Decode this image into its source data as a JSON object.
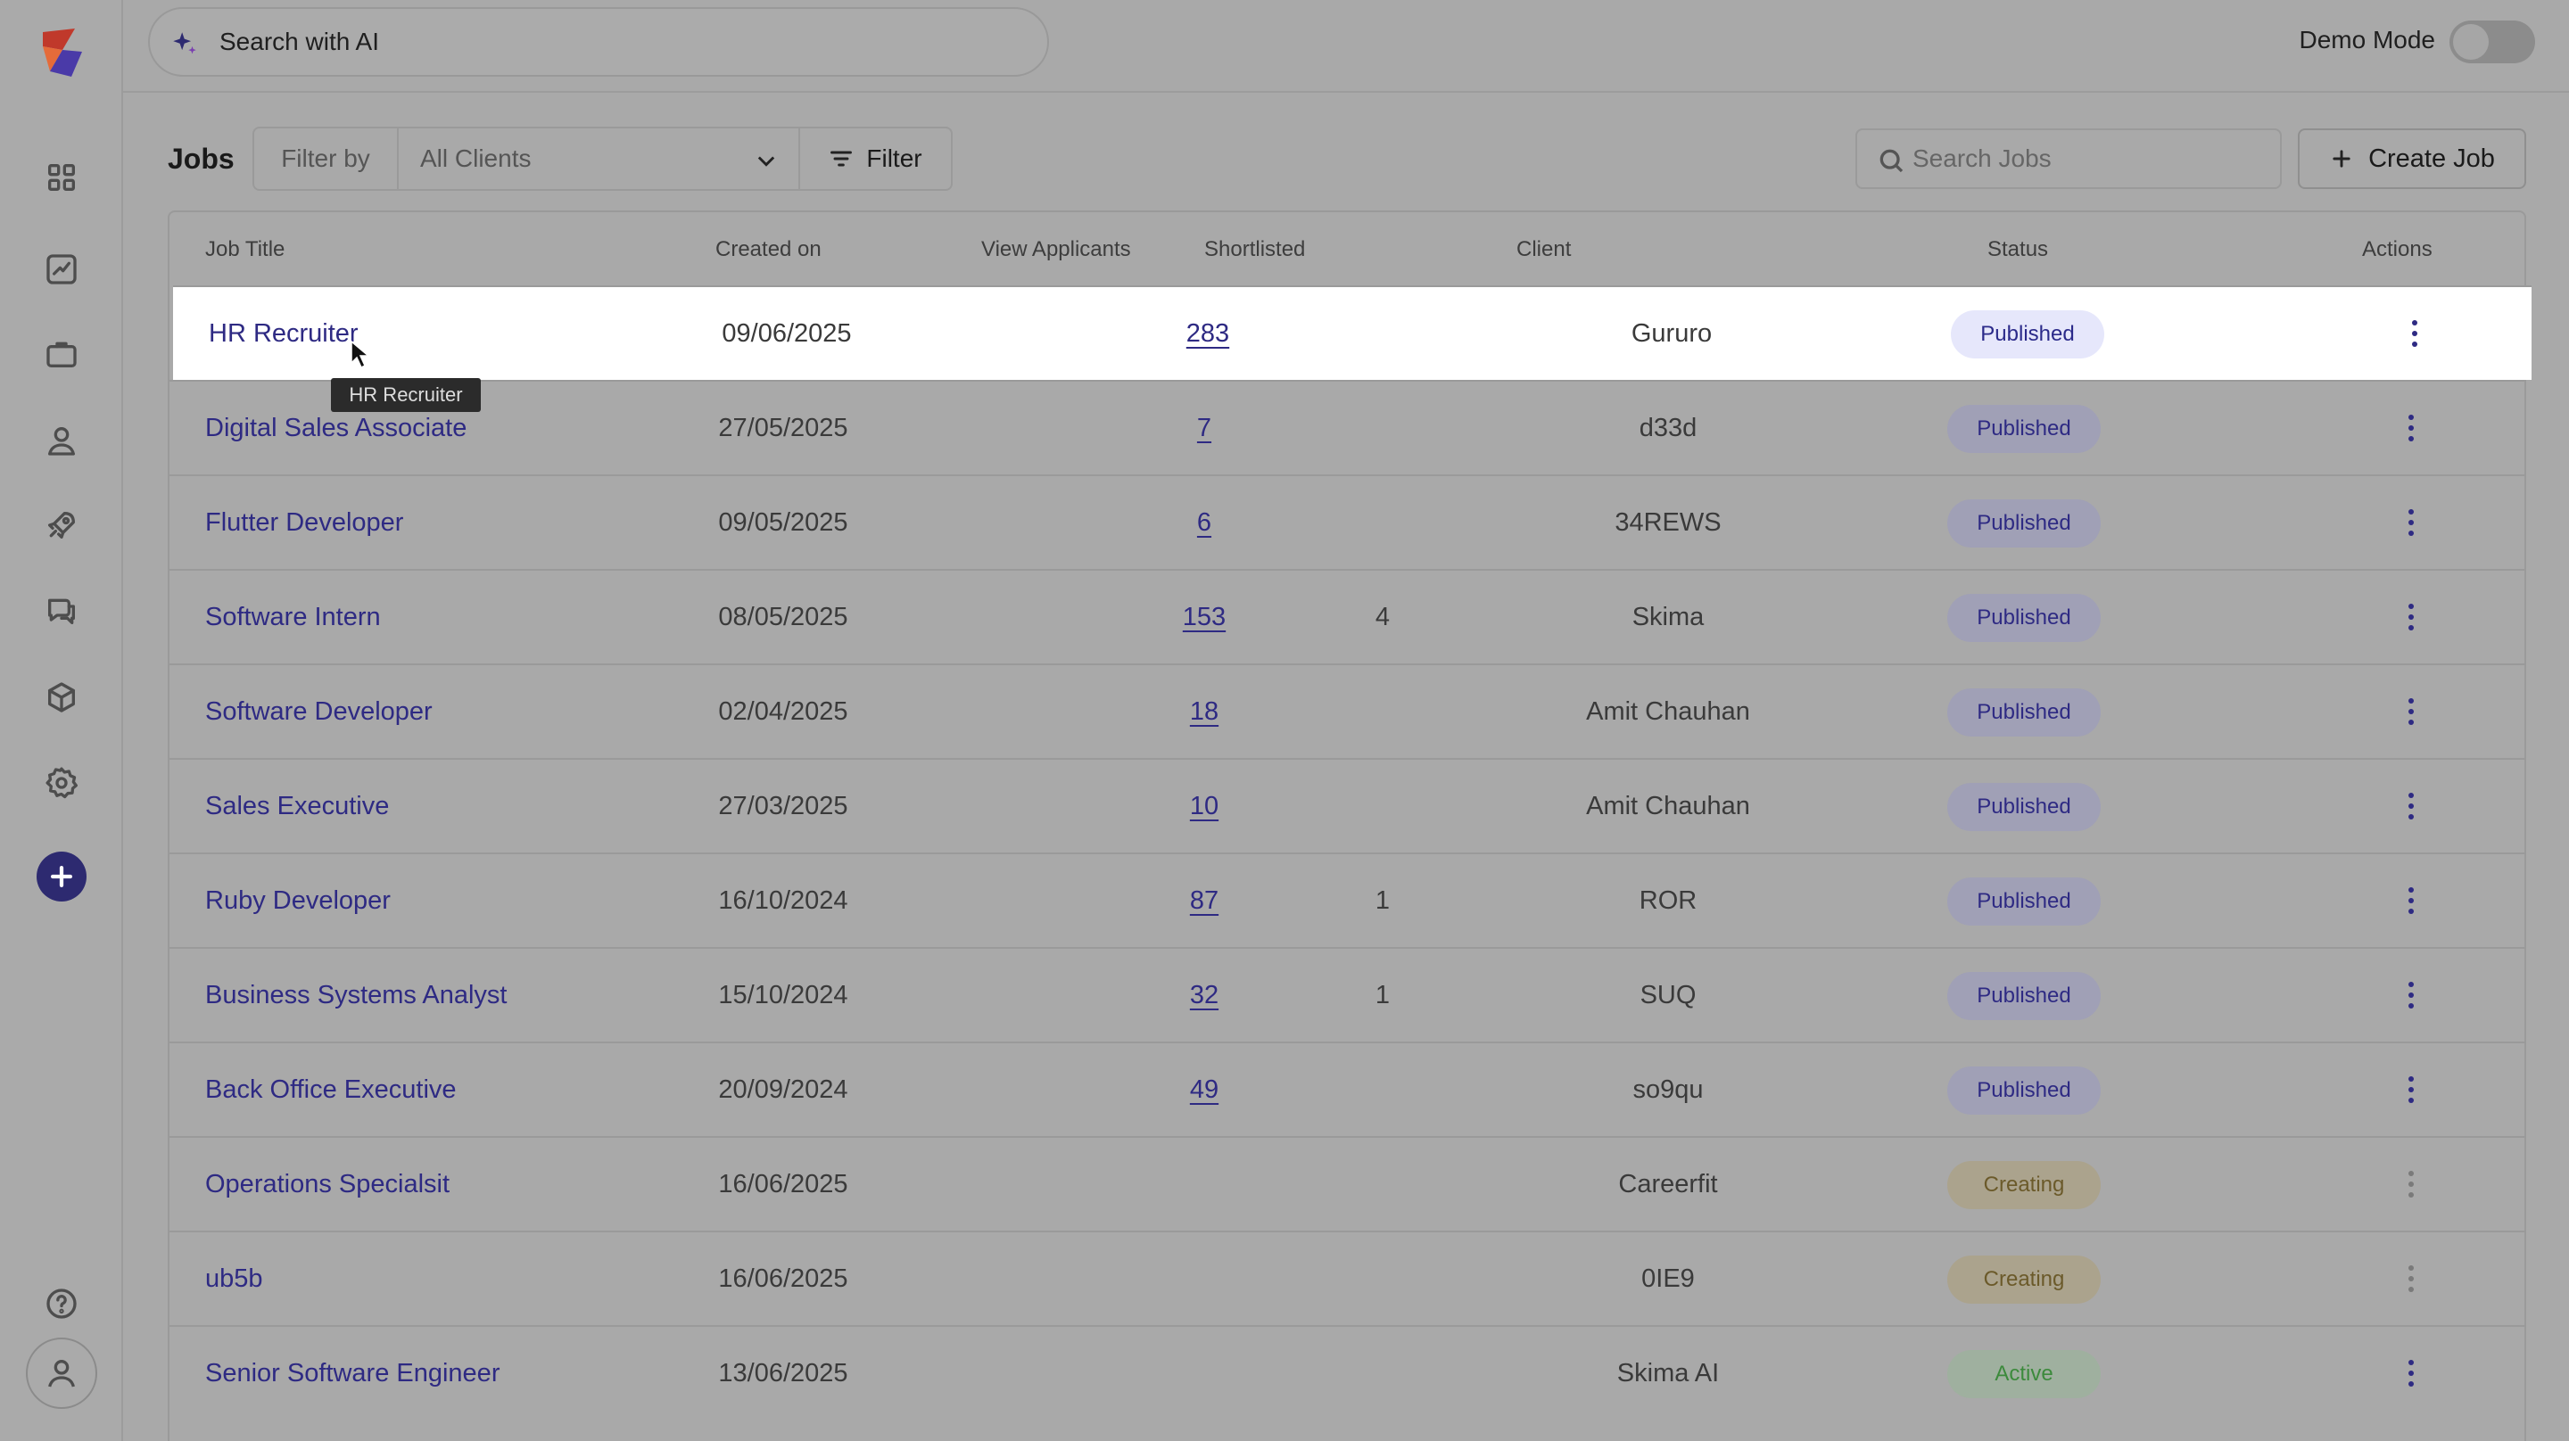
{
  "topbar": {
    "ai_search_placeholder": "Search with AI",
    "demo_mode_label": "Demo Mode",
    "demo_mode_on": false
  },
  "sidebar": {
    "items": [
      {
        "icon": "grid-icon"
      },
      {
        "icon": "chart-trend-icon"
      },
      {
        "icon": "briefcase-icon"
      },
      {
        "icon": "user-icon"
      },
      {
        "icon": "rocket-icon"
      },
      {
        "icon": "chat-icon"
      },
      {
        "icon": "cube-icon"
      },
      {
        "icon": "gear-icon"
      }
    ],
    "add_icon": "plus-icon",
    "help_icon": "help-icon",
    "avatar_icon": "user-avatar-icon"
  },
  "toolbar": {
    "title": "Jobs",
    "filter_by_label": "Filter by",
    "client_select_value": "All Clients",
    "filter_button": "Filter",
    "search_placeholder": "Search Jobs",
    "create_button": "Create Job"
  },
  "table": {
    "columns": [
      "Job Title",
      "Created on",
      "View Applicants",
      "Shortlisted",
      "Client",
      "Status",
      "Actions"
    ],
    "rows": [
      {
        "title": "HR Recruiter",
        "created": "09/06/2025",
        "applicants": "283",
        "shortlisted": "",
        "client": "Gururo",
        "status": "Published"
      },
      {
        "title": "Digital Sales Associate",
        "created": "27/05/2025",
        "applicants": "7",
        "shortlisted": "",
        "client": "d33d",
        "status": "Published"
      },
      {
        "title": "Flutter Developer",
        "created": "09/05/2025",
        "applicants": "6",
        "shortlisted": "",
        "client": "34REWS",
        "status": "Published"
      },
      {
        "title": "Software Intern",
        "created": "08/05/2025",
        "applicants": "153",
        "shortlisted": "4",
        "client": "Skima",
        "status": "Published"
      },
      {
        "title": "Software Developer",
        "created": "02/04/2025",
        "applicants": "18",
        "shortlisted": "",
        "client": "Amit Chauhan",
        "status": "Published"
      },
      {
        "title": "Sales Executive",
        "created": "27/03/2025",
        "applicants": "10",
        "shortlisted": "",
        "client": "Amit Chauhan",
        "status": "Published"
      },
      {
        "title": "Ruby Developer",
        "created": "16/10/2024",
        "applicants": "87",
        "shortlisted": "1",
        "client": "ROR",
        "status": "Published"
      },
      {
        "title": "Business Systems Analyst",
        "created": "15/10/2024",
        "applicants": "32",
        "shortlisted": "1",
        "client": "SUQ",
        "status": "Published"
      },
      {
        "title": "Back Office Executive",
        "created": "20/09/2024",
        "applicants": "49",
        "shortlisted": "",
        "client": "so9qu",
        "status": "Published"
      },
      {
        "title": "Operations Specialsit",
        "created": "16/06/2025",
        "applicants": "",
        "shortlisted": "",
        "client": "Careerfit",
        "status": "Creating"
      },
      {
        "title": "ub5b",
        "created": "16/06/2025",
        "applicants": "",
        "shortlisted": "",
        "client": "0IE9",
        "status": "Creating"
      },
      {
        "title": "Senior Software Engineer",
        "created": "13/06/2025",
        "applicants": "",
        "shortlisted": "",
        "client": "Skima AI",
        "status": "Active"
      }
    ]
  },
  "tooltip": {
    "text": "HR Recruiter"
  }
}
